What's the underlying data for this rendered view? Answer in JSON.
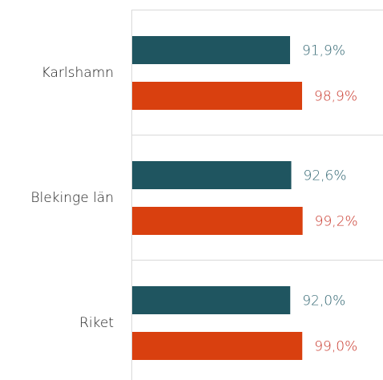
{
  "chart_data": {
    "type": "hbar",
    "categories": [
      "Karlshamn",
      "Blekinge län",
      "Riket"
    ],
    "series": [
      {
        "color": "#1f5560",
        "label_color": "#2f6470",
        "values": [
          91.9,
          92.6,
          92.0
        ],
        "value_labels": [
          "91,9%",
          "92,6%",
          "92,0%"
        ]
      },
      {
        "color": "#d9400f",
        "label_color": "#c8362a",
        "values": [
          98.9,
          99.2,
          99.0
        ],
        "value_labels": [
          "98,9%",
          "99,2%",
          "99,0%"
        ]
      }
    ],
    "xlim": [
      0,
      146
    ]
  }
}
